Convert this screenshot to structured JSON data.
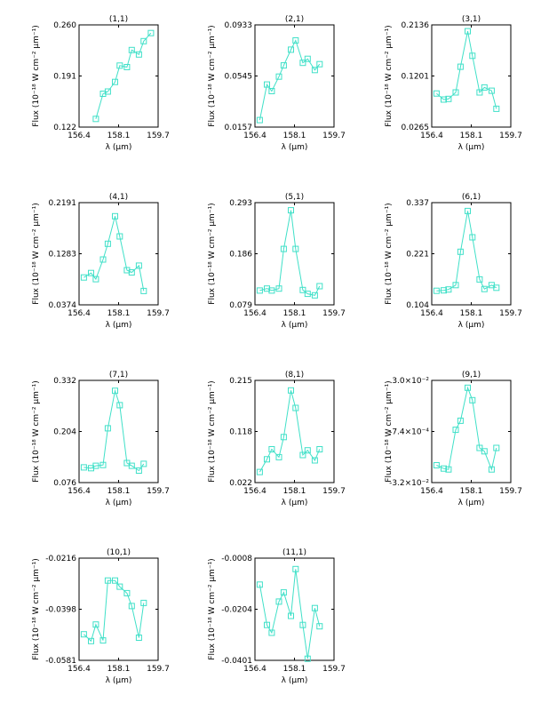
{
  "figure": {
    "xlabel": "λ (μm)",
    "ylabel": "Flux (10⁻¹⁸ W cm⁻² μm⁻¹)",
    "line_color": "#40e0c8"
  },
  "chart_data": [
    {
      "type": "line",
      "title": "(1,1)",
      "xlim": [
        156.4,
        159.7
      ],
      "xticks": [
        "156.4",
        "158.1",
        "159.7"
      ],
      "ylim": [
        0.122,
        0.26
      ],
      "yticks": [
        "0.122",
        "0.191",
        "0.260"
      ],
      "x": [
        156.6,
        156.9,
        157.1,
        157.4,
        157.6,
        157.9,
        158.1,
        158.4,
        158.6,
        158.9,
        159.1,
        159.4
      ],
      "y": [
        null,
        null,
        0.133,
        0.167,
        0.17,
        0.183,
        0.205,
        0.203,
        0.226,
        0.22,
        0.238,
        0.249
      ]
    },
    {
      "type": "line",
      "title": "(2,1)",
      "xlim": [
        156.4,
        159.7
      ],
      "xticks": [
        "156.4",
        "158.1",
        "159.7"
      ],
      "ylim": [
        0.0157,
        0.0933
      ],
      "yticks": [
        "0.0157",
        "0.0545",
        "0.0933"
      ],
      "x": [
        156.6,
        156.9,
        157.1,
        157.4,
        157.6,
        157.9,
        158.1,
        158.4,
        158.6,
        158.9,
        159.1,
        159.4
      ],
      "y": [
        0.021,
        0.048,
        0.043,
        0.054,
        0.0625,
        0.0745,
        0.0815,
        0.0645,
        0.0675,
        0.059,
        0.0635,
        null
      ]
    },
    {
      "type": "line",
      "title": "(3,1)",
      "xlim": [
        156.4,
        159.7
      ],
      "xticks": [
        "156.4",
        "158.1",
        "159.7"
      ],
      "ylim": [
        0.0265,
        0.2136
      ],
      "yticks": [
        "0.0265",
        "0.1201",
        "0.2136"
      ],
      "x": [
        156.6,
        156.9,
        157.1,
        157.4,
        157.6,
        157.9,
        158.1,
        158.4,
        158.6,
        158.9,
        159.1,
        159.4
      ],
      "y": [
        0.088,
        0.077,
        0.078,
        0.09,
        0.137,
        0.202,
        0.157,
        0.09,
        0.099,
        0.093,
        0.06,
        null
      ]
    },
    {
      "type": "line",
      "title": "(4,1)",
      "xlim": [
        156.4,
        159.7
      ],
      "xticks": [
        "156.4",
        "158.1",
        "159.7"
      ],
      "ylim": [
        0.0374,
        0.2191
      ],
      "yticks": [
        "0.0374",
        "0.1283",
        "0.2191"
      ],
      "x": [
        156.6,
        156.9,
        157.1,
        157.4,
        157.6,
        157.9,
        158.1,
        158.4,
        158.6,
        158.9,
        159.1,
        159.4
      ],
      "y": [
        0.086,
        0.094,
        0.083,
        0.118,
        0.146,
        0.195,
        0.159,
        0.099,
        0.095,
        0.107,
        0.062,
        null
      ]
    },
    {
      "type": "line",
      "title": "(5,1)",
      "xlim": [
        156.4,
        159.7
      ],
      "xticks": [
        "156.4",
        "158.1",
        "159.7"
      ],
      "ylim": [
        0.079,
        0.293
      ],
      "yticks": [
        "0.079",
        "0.186",
        "0.293"
      ],
      "x": [
        156.6,
        156.9,
        157.1,
        157.4,
        157.6,
        157.9,
        158.1,
        158.4,
        158.6,
        158.9,
        159.1,
        159.4
      ],
      "y": [
        0.109,
        0.113,
        0.109,
        0.113,
        0.196,
        0.277,
        0.196,
        0.11,
        0.102,
        0.099,
        0.118,
        null
      ]
    },
    {
      "type": "line",
      "title": "(6,1)",
      "xlim": [
        156.4,
        159.7
      ],
      "xticks": [
        "156.4",
        "158.1",
        "159.7"
      ],
      "ylim": [
        0.104,
        0.337
      ],
      "yticks": [
        "0.104",
        "0.221",
        "0.337"
      ],
      "x": [
        156.6,
        156.9,
        157.1,
        157.4,
        157.6,
        157.9,
        158.1,
        158.4,
        158.6,
        158.9,
        159.1,
        159.4
      ],
      "y": [
        0.136,
        0.137,
        0.139,
        0.149,
        0.225,
        0.318,
        0.258,
        0.162,
        0.14,
        0.149,
        0.143,
        null
      ]
    },
    {
      "type": "line",
      "title": "(7,1)",
      "xlim": [
        156.4,
        159.7
      ],
      "xticks": [
        "156.4",
        "158.1",
        "159.7"
      ],
      "ylim": [
        0.076,
        0.332
      ],
      "yticks": [
        "0.076",
        "0.204",
        "0.332"
      ],
      "x": [
        156.6,
        156.9,
        157.1,
        157.4,
        157.6,
        157.9,
        158.1,
        158.4,
        158.6,
        158.9,
        159.1,
        159.4
      ],
      "y": [
        0.114,
        0.112,
        0.118,
        0.12,
        0.212,
        0.306,
        0.27,
        0.125,
        0.118,
        0.106,
        0.123,
        null
      ]
    },
    {
      "type": "line",
      "title": "(8,1)",
      "xlim": [
        156.4,
        159.7
      ],
      "xticks": [
        "156.4",
        "158.1",
        "159.7"
      ],
      "ylim": [
        0.022,
        0.215
      ],
      "yticks": [
        "0.022",
        "0.118",
        "0.215"
      ],
      "x": [
        156.6,
        156.9,
        157.1,
        157.4,
        157.6,
        157.9,
        158.1,
        158.4,
        158.6,
        158.9,
        159.1,
        159.4
      ],
      "y": [
        0.042,
        0.066,
        0.085,
        0.07,
        0.108,
        0.196,
        0.163,
        0.074,
        0.083,
        0.064,
        0.085,
        null
      ]
    },
    {
      "type": "line",
      "title": "(9,1)",
      "xlim": [
        156.4,
        159.7
      ],
      "xticks": [
        "156.4",
        "158.1",
        "159.7"
      ],
      "ylim": [
        -0.032,
        0.03
      ],
      "yticks": [
        "-3.2×10⁻²",
        "-7.4×10⁻⁴",
        "3.0×10⁻²"
      ],
      "x": [
        156.6,
        156.9,
        157.1,
        157.4,
        157.6,
        157.9,
        158.1,
        158.4,
        158.6,
        158.9,
        159.1,
        159.4
      ],
      "y": [
        -0.0215,
        -0.0235,
        -0.024,
        0.0,
        0.0055,
        0.0255,
        0.018,
        -0.011,
        -0.013,
        -0.024,
        -0.011,
        null
      ]
    },
    {
      "type": "line",
      "title": "(10,1)",
      "xlim": [
        156.4,
        159.7
      ],
      "xticks": [
        "156.4",
        "158.1",
        "159.7"
      ],
      "ylim": [
        -0.0581,
        -0.0216
      ],
      "yticks": [
        "-0.0581",
        "-0.0398",
        "-0.0216"
      ],
      "x": [
        156.6,
        156.9,
        157.1,
        157.4,
        157.6,
        157.9,
        158.1,
        158.4,
        158.6,
        158.9,
        159.1,
        159.4
      ],
      "y": [
        -0.0488,
        -0.0512,
        -0.0453,
        -0.051,
        -0.0296,
        -0.0296,
        -0.0318,
        -0.0341,
        -0.0387,
        -0.05,
        -0.0376,
        null
      ]
    },
    {
      "type": "line",
      "title": "(11,1)",
      "xlim": [
        156.4,
        159.7
      ],
      "xticks": [
        "156.4",
        "158.1",
        "159.7"
      ],
      "ylim": [
        -0.0401,
        -0.0008
      ],
      "yticks": [
        "-0.0401",
        "-0.0204",
        "-0.0008"
      ],
      "x": [
        156.6,
        156.9,
        157.1,
        157.4,
        157.6,
        157.9,
        158.1,
        158.4,
        158.6,
        158.9,
        159.1,
        159.4
      ],
      "y": [
        -0.011,
        -0.0265,
        -0.0295,
        -0.0175,
        -0.014,
        -0.023,
        -0.005,
        -0.0265,
        -0.0395,
        -0.02,
        -0.027,
        null
      ]
    }
  ]
}
